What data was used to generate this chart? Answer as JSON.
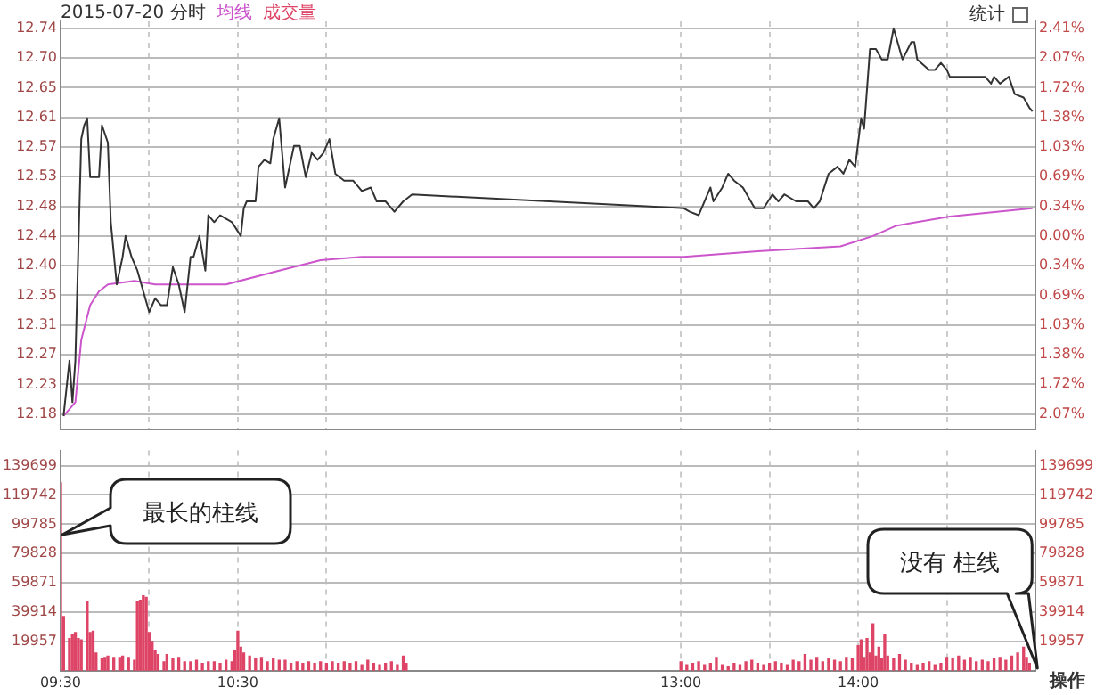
{
  "chart_data": [
    {
      "type": "line",
      "title": "2015-07-20 分时",
      "legend": "top left",
      "grid": true,
      "tick_labels": "y",
      "annotations": [
        "统计"
      ],
      "xlim": [
        "2015-07-20T09:30",
        "2015-07-20T15:00"
      ],
      "xticks": [
        {
          "value": "2015-07-20T09:30",
          "label": null
        },
        {
          "value": "2015-07-20T10:00",
          "label": null
        },
        {
          "value": "2015-07-20T10:30",
          "label": null
        },
        {
          "value": "2015-07-20T11:00",
          "label": null
        },
        {
          "value": "2015-07-20T13:00",
          "label": null
        },
        {
          "value": "2015-07-20T13:30",
          "label": null
        },
        {
          "value": "2015-07-20T14:00",
          "label": null
        },
        {
          "value": "2015-07-20T14:30",
          "label": null
        }
      ],
      "ylim": [
        12.16,
        12.75
      ],
      "yticks": [
        {
          "value": 12.1829,
          "label": "12.18"
        },
        {
          "value": 12.2257,
          "label": "12.23"
        },
        {
          "value": 12.2686,
          "label": "12.27"
        },
        {
          "value": 12.3114,
          "label": "12.31"
        },
        {
          "value": 12.3543,
          "label": "12.35"
        },
        {
          "value": 12.3971,
          "label": "12.40"
        },
        12.44,
        {
          "value": 12.4829,
          "label": "12.48"
        },
        {
          "value": 12.5257,
          "label": "12.53"
        },
        {
          "value": 12.5686,
          "label": "12.57"
        },
        {
          "value": 12.6114,
          "label": "12.61"
        },
        {
          "value": 12.6543,
          "label": "12.65"
        },
        {
          "value": 12.6971,
          "label": "12.70"
        },
        12.74
      ],
      "y2lim": [
        -2.251,
        2.492
      ],
      "y2ticks": [
        {
          "value": 2.4115,
          "label": "2.41%"
        },
        {
          "value": 2.067,
          "label": "2.07%"
        },
        {
          "value": 1.7225,
          "label": "1.72%"
        },
        {
          "value": 1.378,
          "label": "1.38%"
        },
        {
          "value": 1.0335,
          "label": "1.03%"
        },
        {
          "value": 0.689,
          "label": "0.69%"
        },
        {
          "value": 0.3445,
          "label": "0.34%"
        },
        {
          "value": 0,
          "label": "0.00%"
        },
        {
          "value": -0.3445,
          "label": "0.34%"
        },
        {
          "value": -0.689,
          "label": "0.69%"
        },
        {
          "value": -1.0335,
          "label": "1.03%"
        },
        {
          "value": -1.378,
          "label": "1.38%"
        },
        {
          "value": -1.7225,
          "label": "1.72%"
        },
        {
          "value": -2.067,
          "label": "2.07%"
        }
      ],
      "series": [
        {
          "type": "line",
          "color": "#333333",
          "x": [
            "2015-07-20T09:31",
            "2015-07-20T09:33",
            "2015-07-20T09:34",
            "2015-07-20T09:35",
            "2015-07-20T09:37",
            "2015-07-20T09:38",
            "2015-07-20T09:39",
            "2015-07-20T09:40",
            "2015-07-20T09:43",
            "2015-07-20T09:44",
            "2015-07-20T09:46",
            "2015-07-20T09:47",
            "2015-07-20T09:49",
            "2015-07-20T09:51",
            "2015-07-20T09:52",
            "2015-07-20T09:54",
            "2015-07-20T09:56",
            "2015-07-20T09:58",
            "2015-07-20T10:00",
            "2015-07-20T10:02",
            "2015-07-20T10:04",
            "2015-07-20T10:06",
            "2015-07-20T10:08",
            "2015-07-20T10:10",
            "2015-07-20T10:12",
            "2015-07-20T10:14",
            "2015-07-20T10:15",
            "2015-07-20T10:17",
            "2015-07-20T10:19",
            "2015-07-20T10:20",
            "2015-07-20T10:22",
            "2015-07-20T10:24",
            "2015-07-20T10:28",
            "2015-07-20T10:31",
            "2015-07-20T10:32",
            "2015-07-20T10:33",
            "2015-07-20T10:36",
            "2015-07-20T10:37",
            "2015-07-20T10:39",
            "2015-07-20T10:41",
            "2015-07-20T10:42",
            "2015-07-20T10:44",
            "2015-07-20T10:46",
            "2015-07-20T10:49",
            "2015-07-20T10:51",
            "2015-07-20T10:53",
            "2015-07-20T10:55",
            "2015-07-20T10:57",
            "2015-07-20T10:59",
            "2015-07-20T11:01",
            "2015-07-20T11:03",
            "2015-07-20T11:06",
            "2015-07-20T11:09",
            "2015-07-20T11:12",
            "2015-07-20T11:15",
            "2015-07-20T11:17",
            "2015-07-20T11:20",
            "2015-07-20T11:23",
            "2015-07-20T11:26",
            "2015-07-20T11:29",
            "2015-07-20T13:01",
            "2015-07-20T13:03",
            "2015-07-20T13:06",
            "2015-07-20T13:10",
            "2015-07-20T13:11",
            "2015-07-20T13:14",
            "2015-07-20T13:16",
            "2015-07-20T13:18",
            "2015-07-20T13:21",
            "2015-07-20T13:25",
            "2015-07-20T13:28",
            "2015-07-20T13:31",
            "2015-07-20T13:33",
            "2015-07-20T13:35",
            "2015-07-20T13:39",
            "2015-07-20T13:43",
            "2015-07-20T13:45",
            "2015-07-20T13:47",
            "2015-07-20T13:50",
            "2015-07-20T13:53",
            "2015-07-20T13:55",
            "2015-07-20T13:57",
            "2015-07-20T13:59",
            "2015-07-20T14:01",
            "2015-07-20T14:02",
            "2015-07-20T14:04",
            "2015-07-20T14:06",
            "2015-07-20T14:08",
            "2015-07-20T14:10",
            "2015-07-20T14:12",
            "2015-07-20T14:15",
            "2015-07-20T14:18",
            "2015-07-20T14:19",
            "2015-07-20T14:20",
            "2015-07-20T14:24",
            "2015-07-20T14:26",
            "2015-07-20T14:28",
            "2015-07-20T14:30",
            "2015-07-20T14:31",
            "2015-07-20T14:36",
            "2015-07-20T14:38",
            "2015-07-20T14:41",
            "2015-07-20T14:43",
            "2015-07-20T14:45",
            "2015-07-20T14:46",
            "2015-07-20T14:48",
            "2015-07-20T14:51",
            "2015-07-20T14:53",
            "2015-07-20T14:56",
            "2015-07-20T14:58",
            "2015-07-20T14:59"
          ],
          "values": [
            12.18,
            12.26,
            12.2,
            12.26,
            12.58,
            12.6,
            12.61,
            12.525,
            12.525,
            12.6,
            12.575,
            12.46,
            12.37,
            12.41,
            12.44,
            12.41,
            12.39,
            12.36,
            12.33,
            12.35,
            12.34,
            12.34,
            12.395,
            12.37,
            12.33,
            12.41,
            12.41,
            12.44,
            12.39,
            12.47,
            12.46,
            12.47,
            12.46,
            12.44,
            12.48,
            12.49,
            12.49,
            12.54,
            12.55,
            12.545,
            12.58,
            12.61,
            12.51,
            12.57,
            12.57,
            12.525,
            12.56,
            12.55,
            12.56,
            12.58,
            12.53,
            12.52,
            12.52,
            12.505,
            12.51,
            12.49,
            12.49,
            12.475,
            12.49,
            12.5,
            12.48,
            12.475,
            12.47,
            12.51,
            12.49,
            12.51,
            12.53,
            12.52,
            12.51,
            12.48,
            12.48,
            12.5,
            12.49,
            12.5,
            12.49,
            12.49,
            12.48,
            12.49,
            12.53,
            12.54,
            12.53,
            12.55,
            12.54,
            12.61,
            12.595,
            12.71,
            12.71,
            12.695,
            12.695,
            12.74,
            12.695,
            12.72,
            12.72,
            12.695,
            12.68,
            12.68,
            12.69,
            12.68,
            12.67,
            12.67,
            12.67,
            12.67,
            12.67,
            12.66,
            12.67,
            12.66,
            12.67,
            12.645,
            12.64,
            12.625,
            12.62
          ]
        },
        {
          "type": "line",
          "name": "均线",
          "color": "#cc55cc",
          "x": [
            "2015-07-20T09:31",
            "2015-07-20T09:33",
            "2015-07-20T09:35",
            "2015-07-20T09:37",
            "2015-07-20T09:40",
            "2015-07-20T09:43",
            "2015-07-20T09:46",
            "2015-07-20T09:55",
            "2015-07-20T10:02",
            "2015-07-20T10:15",
            "2015-07-20T10:26",
            "2015-07-20T10:44",
            "2015-07-20T10:58",
            "2015-07-20T11:12",
            "2015-07-20T13:01",
            "2015-07-20T13:26",
            "2015-07-20T13:54",
            "2015-07-20T14:05",
            "2015-07-20T14:13",
            "2015-07-20T14:31",
            "2015-07-20T14:59"
          ],
          "values": [
            12.18,
            12.19,
            12.2,
            12.29,
            12.34,
            12.36,
            12.37,
            12.375,
            12.37,
            12.37,
            12.37,
            12.39,
            12.405,
            12.41,
            12.41,
            12.418,
            12.425,
            12.44,
            12.455,
            12.468,
            12.48
          ]
        }
      ]
    },
    {
      "type": "bar",
      "legend": "top left",
      "grid": true,
      "xlim": [
        "2015-07-20T09:30",
        "2015-07-20T15:00"
      ],
      "xticks": [
        {
          "value": "2015-07-20T09:30",
          "label": "09:30"
        },
        {
          "value": "2015-07-20T10:00",
          "label": null
        },
        {
          "value": "2015-07-20T10:30",
          "label": "10:30"
        },
        {
          "value": "2015-07-20T11:00",
          "label": null
        },
        {
          "value": "2015-07-20T13:00",
          "label": "13:00"
        },
        {
          "value": "2015-07-20T13:30",
          "label": null
        },
        {
          "value": "2015-07-20T14:00",
          "label": "14:00"
        },
        {
          "value": "2015-07-20T14:30",
          "label": null
        }
      ],
      "ylim": [
        0,
        150000
      ],
      "yticks": [
        19957,
        39914,
        59871,
        79828,
        99785,
        119742,
        139699
      ],
      "y2lim": [
        0,
        150000
      ],
      "y2ticks": [
        19957,
        39914,
        59871,
        79828,
        99785,
        119742,
        139699
      ],
      "annotations": [
        "操作",
        "最长的柱线",
        "没有 柱线"
      ],
      "series": [
        {
          "name": "成交量",
          "color": "#dd4466",
          "x": [
            "2015-07-20T09:30",
            "2015-07-20T09:31",
            "2015-07-20T09:33",
            "2015-07-20T09:34",
            "2015-07-20T09:35",
            "2015-07-20T09:36",
            "2015-07-20T09:37",
            "2015-07-20T09:39",
            "2015-07-20T09:40",
            "2015-07-20T09:41",
            "2015-07-20T09:42",
            "2015-07-20T09:44",
            "2015-07-20T09:45",
            "2015-07-20T09:46",
            "2015-07-20T09:48",
            "2015-07-20T09:50",
            "2015-07-20T09:51",
            "2015-07-20T09:53",
            "2015-07-20T09:55",
            "2015-07-20T09:56",
            "2015-07-20T09:57",
            "2015-07-20T09:58",
            "2015-07-20T09:59",
            "2015-07-20T10:00",
            "2015-07-20T10:01",
            "2015-07-20T10:02",
            "2015-07-20T10:03",
            "2015-07-20T10:05",
            "2015-07-20T10:06",
            "2015-07-20T10:08",
            "2015-07-20T10:10",
            "2015-07-20T10:12",
            "2015-07-20T10:14",
            "2015-07-20T10:16",
            "2015-07-20T10:18",
            "2015-07-20T10:20",
            "2015-07-20T10:22",
            "2015-07-20T10:24",
            "2015-07-20T10:26",
            "2015-07-20T10:28",
            "2015-07-20T10:29",
            "2015-07-20T10:30",
            "2015-07-20T10:31",
            "2015-07-20T10:32",
            "2015-07-20T10:34",
            "2015-07-20T10:36",
            "2015-07-20T10:38",
            "2015-07-20T10:40",
            "2015-07-20T10:42",
            "2015-07-20T10:44",
            "2015-07-20T10:46",
            "2015-07-20T10:48",
            "2015-07-20T10:50",
            "2015-07-20T10:52",
            "2015-07-20T10:54",
            "2015-07-20T10:56",
            "2015-07-20T10:58",
            "2015-07-20T11:00",
            "2015-07-20T11:02",
            "2015-07-20T11:04",
            "2015-07-20T11:06",
            "2015-07-20T11:08",
            "2015-07-20T11:10",
            "2015-07-20T11:12",
            "2015-07-20T11:14",
            "2015-07-20T11:16",
            "2015-07-20T11:18",
            "2015-07-20T11:20",
            "2015-07-20T11:22",
            "2015-07-20T11:24",
            "2015-07-20T11:26",
            "2015-07-20T11:27",
            "2015-07-20T13:00",
            "2015-07-20T13:02",
            "2015-07-20T13:04",
            "2015-07-20T13:06",
            "2015-07-20T13:08",
            "2015-07-20T13:10",
            "2015-07-20T13:12",
            "2015-07-20T13:14",
            "2015-07-20T13:16",
            "2015-07-20T13:18",
            "2015-07-20T13:20",
            "2015-07-20T13:22",
            "2015-07-20T13:24",
            "2015-07-20T13:26",
            "2015-07-20T13:28",
            "2015-07-20T13:30",
            "2015-07-20T13:32",
            "2015-07-20T13:34",
            "2015-07-20T13:36",
            "2015-07-20T13:38",
            "2015-07-20T13:40",
            "2015-07-20T13:42",
            "2015-07-20T13:44",
            "2015-07-20T13:46",
            "2015-07-20T13:48",
            "2015-07-20T13:50",
            "2015-07-20T13:52",
            "2015-07-20T13:54",
            "2015-07-20T13:56",
            "2015-07-20T13:58",
            "2015-07-20T14:00",
            "2015-07-20T14:01",
            "2015-07-20T14:02",
            "2015-07-20T14:03",
            "2015-07-20T14:04",
            "2015-07-20T14:05",
            "2015-07-20T14:06",
            "2015-07-20T14:07",
            "2015-07-20T14:08",
            "2015-07-20T14:09",
            "2015-07-20T14:10",
            "2015-07-20T14:12",
            "2015-07-20T14:14",
            "2015-07-20T14:16",
            "2015-07-20T14:18",
            "2015-07-20T14:20",
            "2015-07-20T14:22",
            "2015-07-20T14:24",
            "2015-07-20T14:26",
            "2015-07-20T14:28",
            "2015-07-20T14:30",
            "2015-07-20T14:32",
            "2015-07-20T14:34",
            "2015-07-20T14:36",
            "2015-07-20T14:38",
            "2015-07-20T14:40",
            "2015-07-20T14:42",
            "2015-07-20T14:44",
            "2015-07-20T14:46",
            "2015-07-20T14:48",
            "2015-07-20T14:50",
            "2015-07-20T14:52",
            "2015-07-20T14:54",
            "2015-07-20T14:56",
            "2015-07-20T14:57",
            "2015-07-20T14:58"
          ],
          "values": [
            128000,
            37000,
            22000,
            25000,
            26000,
            22000,
            21000,
            47000,
            26000,
            27000,
            12000,
            8000,
            9000,
            10000,
            9000,
            9000,
            10000,
            9000,
            7000,
            47000,
            48000,
            51000,
            50000,
            26000,
            20000,
            14000,
            11000,
            6000,
            11000,
            8000,
            9000,
            6000,
            6000,
            7000,
            5000,
            6000,
            6000,
            5000,
            7000,
            6000,
            14000,
            27000,
            16000,
            12000,
            10000,
            8000,
            9000,
            6000,
            8000,
            7000,
            7000,
            5000,
            6000,
            5000,
            6000,
            5000,
            6000,
            5000,
            6000,
            5000,
            6000,
            5000,
            6000,
            4000,
            7000,
            5000,
            4000,
            5000,
            6000,
            4000,
            10000,
            5000,
            6000,
            4000,
            5000,
            6000,
            4000,
            5000,
            9000,
            4000,
            3000,
            5000,
            4000,
            6000,
            7000,
            5000,
            4000,
            5000,
            6000,
            5000,
            4000,
            7000,
            6000,
            11000,
            7000,
            9000,
            6000,
            8000,
            7000,
            6000,
            9000,
            8000,
            17000,
            21000,
            9000,
            22000,
            12000,
            32000,
            10000,
            16000,
            8000,
            25000,
            10000,
            8000,
            11000,
            7000,
            5000,
            4000,
            5000,
            6000,
            4000,
            5000,
            9000,
            8000,
            10000,
            7000,
            9000,
            6000,
            7000,
            6000,
            8000,
            9000,
            7000,
            10000,
            12000,
            16000,
            9000,
            5000
          ]
        }
      ]
    }
  ]
}
